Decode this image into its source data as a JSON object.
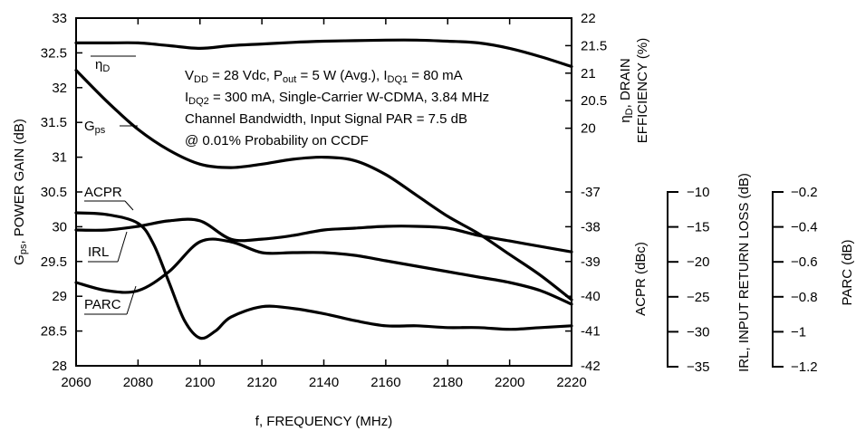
{
  "chart_data": {
    "type": "line",
    "xlabel": "f, FREQUENCY (MHz)",
    "x_ticks": [
      "2060",
      "2080",
      "2100",
      "2120",
      "2140",
      "2160",
      "2180",
      "2200",
      "2220"
    ],
    "xlim": [
      2060,
      2220
    ],
    "axes": {
      "gain": {
        "label_main": "G",
        "label_sub": "ps",
        "label_rest": ", POWER GAIN (dB)",
        "ylim": [
          28,
          33
        ],
        "ticks": [
          "33",
          "32.5",
          "32",
          "31.5",
          "31",
          "30.5",
          "30",
          "29.5",
          "29",
          "28.5",
          "28"
        ]
      },
      "efficiency": {
        "label_line1": "η",
        "label_line1_sub": "D",
        "label_line1_rest": ", DRAIN",
        "label_line2": "EFFICIENCY (%)",
        "ylim": [
          19.5,
          22
        ],
        "ticks": [
          "22",
          "21.5",
          "21",
          "20.5",
          "20"
        ]
      },
      "acpr": {
        "label": "ACPR (dBc)",
        "ylim": [
          -42,
          -37
        ],
        "ticks": [
          "-37",
          "-38",
          "-39",
          "-40",
          "-41",
          "-42"
        ]
      },
      "irl": {
        "label": "IRL, INPUT RETURN LOSS (dB)",
        "ylim": [
          -35,
          -10
        ],
        "ticks": [
          "−10",
          "−15",
          "−20",
          "−25",
          "−30",
          "−35"
        ]
      },
      "parc": {
        "label": "PARC (dB)",
        "ylim": [
          -1.2,
          -0.2
        ],
        "ticks": [
          "−0.2",
          "−0.4",
          "−0.6",
          "−0.8",
          "−1",
          "−1.2"
        ]
      }
    },
    "series": [
      {
        "name": "η",
        "name_sub": "D",
        "axis": "efficiency",
        "x": [
          2060,
          2070,
          2080,
          2090,
          2100,
          2110,
          2120,
          2130,
          2140,
          2150,
          2160,
          2170,
          2180,
          2190,
          2200,
          2210,
          2220
        ],
        "y": [
          21.55,
          21.55,
          21.55,
          21.5,
          21.45,
          21.5,
          21.53,
          21.56,
          21.58,
          21.59,
          21.6,
          21.6,
          21.58,
          21.55,
          21.45,
          21.3,
          21.12
        ]
      },
      {
        "name": "G",
        "name_sub": "ps",
        "axis": "gain",
        "x": [
          2060,
          2070,
          2080,
          2090,
          2100,
          2110,
          2120,
          2130,
          2140,
          2150,
          2160,
          2170,
          2180,
          2190,
          2200,
          2210,
          2220
        ],
        "y": [
          32.25,
          31.8,
          31.4,
          31.1,
          30.9,
          30.85,
          30.9,
          30.97,
          31.0,
          30.95,
          30.75,
          30.45,
          30.15,
          29.9,
          29.6,
          29.3,
          28.95
        ]
      },
      {
        "name": "ACPR",
        "axis": "acpr",
        "x": [
          2060,
          2070,
          2080,
          2085,
          2090,
          2095,
          2100,
          2105,
          2110,
          2120,
          2130,
          2140,
          2150,
          2160,
          2170,
          2180,
          2190,
          2200,
          2210,
          2220
        ],
        "y": [
          -37.6,
          -37.65,
          -37.9,
          -38.5,
          -39.6,
          -40.7,
          -41.2,
          -41.0,
          -40.6,
          -40.3,
          -40.35,
          -40.5,
          -40.7,
          -40.85,
          -40.85,
          -40.9,
          -40.9,
          -40.95,
          -40.9,
          -40.85
        ]
      },
      {
        "name": "IRL",
        "axis": "irl",
        "x": [
          2060,
          2070,
          2080,
          2090,
          2100,
          2110,
          2120,
          2130,
          2140,
          2150,
          2160,
          2170,
          2180,
          2190,
          2200,
          2210,
          2220
        ],
        "y": [
          -15.0,
          -15.0,
          -14.8,
          -14.5,
          -14.5,
          -15.5,
          -15.5,
          -15.3,
          -15.0,
          -14.9,
          -14.8,
          -14.8,
          -14.9,
          -15.3,
          -15.6,
          -15.9,
          -16.2
        ]
      },
      {
        "name": "PARC",
        "axis": "parc",
        "x": [
          2060,
          2070,
          2080,
          2090,
          2100,
          2110,
          2120,
          2130,
          2140,
          2150,
          2160,
          2170,
          2180,
          2190,
          2200,
          2210,
          2220
        ],
        "y": [
          -0.71,
          -0.74,
          -0.74,
          -0.67,
          -0.56,
          -0.56,
          -0.6,
          -0.6,
          -0.6,
          -0.61,
          -0.63,
          -0.65,
          -0.67,
          -0.69,
          -0.71,
          -0.74,
          -0.79
        ]
      }
    ],
    "annotation": [
      {
        "parts": [
          [
            "V",
            ""
          ],
          [
            "DD",
            "sub"
          ],
          [
            " = 28 Vdc, P",
            ""
          ],
          [
            "out",
            "sub"
          ],
          [
            " = 5 W (Avg.), I",
            ""
          ],
          [
            "DQ1",
            "sub"
          ],
          [
            " = 80 mA",
            ""
          ]
        ]
      },
      {
        "parts": [
          [
            "I",
            ""
          ],
          [
            "DQ2",
            "sub"
          ],
          [
            " = 300 mA, Single-Carrier W-CDMA, 3.84 MHz",
            ""
          ]
        ]
      },
      {
        "parts": [
          [
            "Channel Bandwidth, Input Signal PAR = 7.5 dB",
            ""
          ]
        ]
      },
      {
        "parts": [
          [
            "@ 0.01% Probability on CCDF",
            ""
          ]
        ]
      }
    ],
    "grid": false,
    "legend": "none (series labeled inline)"
  }
}
